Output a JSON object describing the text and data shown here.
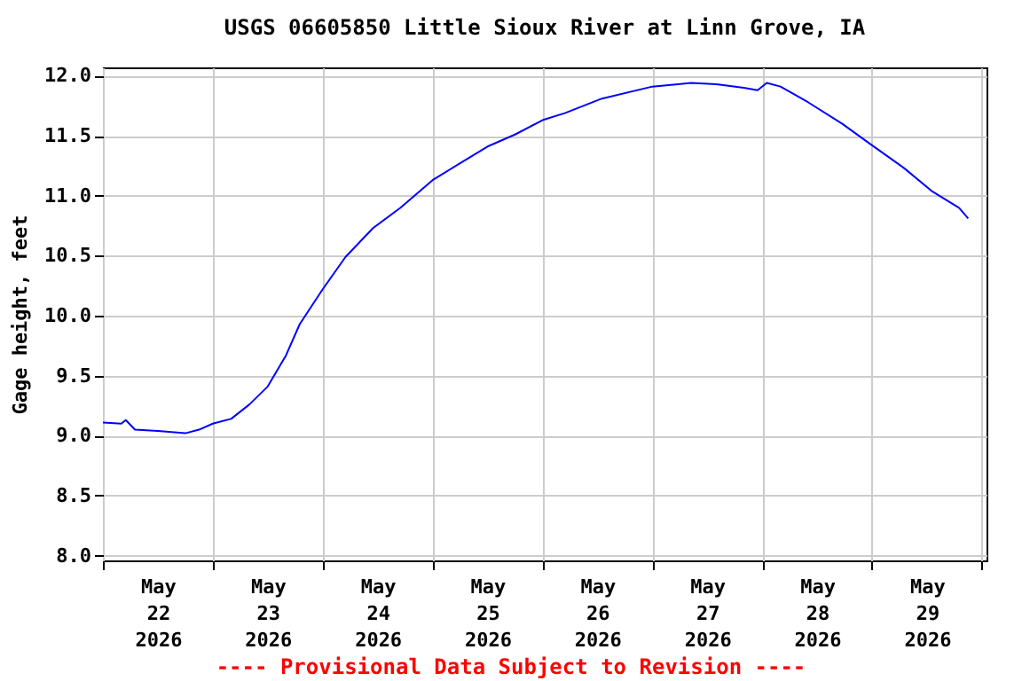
{
  "chart_data": {
    "type": "line",
    "title": "USGS 06605850 Little Sioux River at Linn Grove, IA",
    "ylabel": "Gage height, feet",
    "x": [
      "2026-05-22T00:00",
      "2026-05-22T04:00",
      "2026-05-22T05:00",
      "2026-05-22T07:00",
      "2026-05-22T12:00",
      "2026-05-22T18:00",
      "2026-05-22T21:00",
      "2026-05-23T00:00",
      "2026-05-23T04:00",
      "2026-05-23T08:00",
      "2026-05-23T12:00",
      "2026-05-23T16:00",
      "2026-05-23T19:00",
      "2026-05-24T00:00",
      "2026-05-24T05:00",
      "2026-05-24T11:00",
      "2026-05-24T17:00",
      "2026-05-25T00:00",
      "2026-05-25T06:00",
      "2026-05-25T12:00",
      "2026-05-25T18:00",
      "2026-05-26T00:00",
      "2026-05-26T05:00",
      "2026-05-26T13:00",
      "2026-05-27T00:00",
      "2026-05-27T08:30",
      "2026-05-27T14:00",
      "2026-05-27T20:00",
      "2026-05-27T23:00",
      "2026-05-28T01:00",
      "2026-05-28T04:00",
      "2026-05-28T10:00",
      "2026-05-28T17:30",
      "2026-05-29T00:00",
      "2026-05-29T07:00",
      "2026-05-29T13:00",
      "2026-05-29T19:00",
      "2026-05-29T21:00"
    ],
    "series": [
      {
        "color": "#0000ff",
        "values": [
          9.11,
          9.1,
          9.13,
          9.05,
          9.04,
          9.02,
          9.05,
          9.1,
          9.14,
          9.26,
          9.41,
          9.67,
          9.93,
          10.22,
          10.49,
          10.73,
          10.9,
          11.13,
          11.27,
          11.41,
          11.51,
          11.63,
          11.69,
          11.81,
          11.91,
          11.94,
          11.93,
          11.9,
          11.88,
          11.94,
          11.91,
          11.78,
          11.6,
          11.42,
          11.23,
          11.04,
          10.9,
          10.81
        ]
      }
    ],
    "xlim": [
      "2026-05-22T00:00",
      "2026-05-30T01:00"
    ],
    "xticks": [
      {
        "value": "2026-05-22T00:00",
        "label": null
      },
      {
        "value": "2026-05-22T12:00",
        "label": "May\n22\n2026"
      },
      {
        "value": "2026-05-23T00:00",
        "label": null
      },
      {
        "value": "2026-05-23T12:00",
        "label": "May\n23\n2026"
      },
      {
        "value": "2026-05-24T00:00",
        "label": null
      },
      {
        "value": "2026-05-24T12:00",
        "label": "May\n24\n2026"
      },
      {
        "value": "2026-05-25T00:00",
        "label": null
      },
      {
        "value": "2026-05-25T12:00",
        "label": "May\n25\n2026"
      },
      {
        "value": "2026-05-26T00:00",
        "label": null
      },
      {
        "value": "2026-05-26T12:00",
        "label": "May\n26\n2026"
      },
      {
        "value": "2026-05-27T00:00",
        "label": null
      },
      {
        "value": "2026-05-27T12:00",
        "label": "May\n27\n2026"
      },
      {
        "value": "2026-05-28T00:00",
        "label": null
      },
      {
        "value": "2026-05-28T12:00",
        "label": "May\n28\n2026"
      },
      {
        "value": "2026-05-29T00:00",
        "label": null
      },
      {
        "value": "2026-05-29T12:00",
        "label": "May\n29\n2026"
      },
      {
        "value": "2026-05-30T00:00",
        "label": null
      }
    ],
    "ylim": [
      7.96,
      12.07
    ],
    "yticks": [
      {
        "value": 8,
        "label": "8.0"
      },
      {
        "value": 8.5,
        "label": "8.5"
      },
      {
        "value": 9,
        "label": "9.0"
      },
      {
        "value": 9.5,
        "label": "9.5"
      },
      {
        "value": 10,
        "label": "10.0"
      },
      {
        "value": 10.5,
        "label": "10.5"
      },
      {
        "value": 11,
        "label": "11.0"
      },
      {
        "value": 11.5,
        "label": "11.5"
      },
      {
        "value": 12,
        "label": "12.0"
      }
    ],
    "grid": true,
    "annotations": [
      "---- Provisional Data Subject to Revision ----"
    ]
  }
}
